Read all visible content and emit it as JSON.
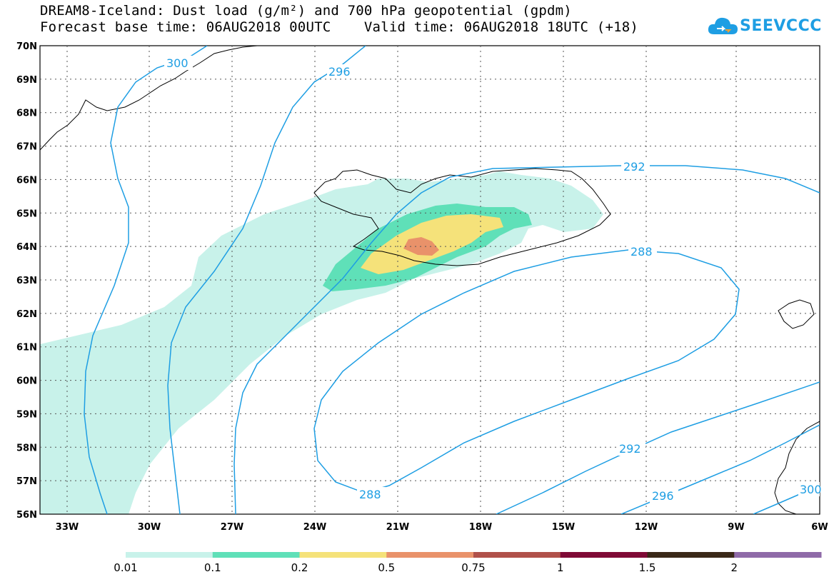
{
  "header": {
    "title_line1": "DREAM8-Iceland: Dust load (g/m²) and 700 hPa geopotential (gpdm)",
    "title_line2": "Forecast base time: 06AUG2018 00UTC    Valid time: 06AUG2018 18UTC (+18)"
  },
  "logo": {
    "text": "SEEVCCC",
    "icon": "cloud-icon",
    "color": "#1e9ee3"
  },
  "axes": {
    "lat_labels": [
      "70N",
      "69N",
      "68N",
      "67N",
      "66N",
      "65N",
      "64N",
      "63N",
      "62N",
      "61N",
      "60N",
      "59N",
      "58N",
      "57N",
      "56N"
    ],
    "lon_labels": [
      "33W",
      "30W",
      "27W",
      "24W",
      "21W",
      "18W",
      "15W",
      "12W",
      "9W",
      "6W"
    ]
  },
  "contours": {
    "color": "#1e9ee3",
    "labels": [
      "300",
      "296",
      "292",
      "288",
      "292",
      "296",
      "300"
    ]
  },
  "colorbar": {
    "colors": [
      "#c8f2ea",
      "#5fe0b8",
      "#f5e27a",
      "#e9926a",
      "#b0504a",
      "#7f0a36",
      "#3a2818",
      "#8f6aa8"
    ],
    "tick_labels": [
      "0.01",
      "0.1",
      "0.2",
      "0.5",
      "0.75",
      "1",
      "1.5",
      "2"
    ]
  },
  "dust_colors": {
    "low": "#c8f2ea",
    "mid": "#5fe0b8",
    "high": "#f5e27a",
    "peak": "#e9926a"
  }
}
